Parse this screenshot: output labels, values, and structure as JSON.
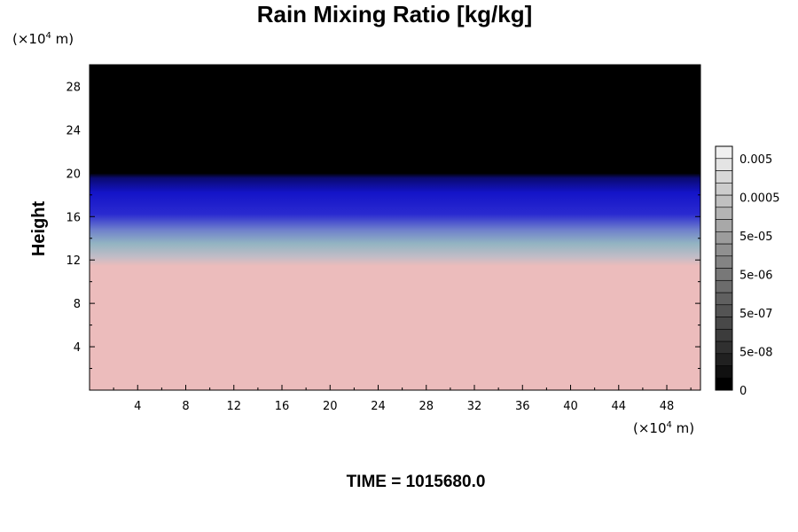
{
  "chart_data": {
    "type": "heatmap",
    "title": "Rain Mixing Ratio [kg/kg]",
    "ylabel": "Height",
    "xlabel": "",
    "x_unit": {
      "prefix": "(×10",
      "exponent": "4",
      "suffix": " m)"
    },
    "y_unit": {
      "prefix": "(×10",
      "exponent": "4",
      "suffix": " m)"
    },
    "xlim": [
      0,
      50.8
    ],
    "ylim": [
      0,
      30
    ],
    "x_ticks": [
      4,
      8,
      12,
      16,
      20,
      24,
      28,
      32,
      36,
      40,
      44,
      48
    ],
    "y_ticks": [
      4,
      8,
      12,
      16,
      20,
      24,
      28
    ],
    "time_label": "TIME = 1015680.0",
    "layers": [
      {
        "name": "below",
        "y_from": 0,
        "y_to": 11.5,
        "color": "#ecbcbc"
      },
      {
        "name": "mixed",
        "y_from": 11.5,
        "y_to": 15.0,
        "color": "#9ab8c0"
      },
      {
        "name": "blue",
        "y_from": 15.0,
        "y_to": 19.5,
        "color": "#1a1ad0"
      },
      {
        "name": "top",
        "y_from": 19.5,
        "y_to": 30,
        "color": "#000000"
      }
    ],
    "colorbar": {
      "tick_labels": [
        "0.005",
        "0.0005",
        "5e-05",
        "5e-06",
        "5e-07",
        "5e-08",
        "0"
      ],
      "colors": [
        "#000000",
        "#101010",
        "#202020",
        "#303030",
        "#3c3c3c",
        "#484848",
        "#545454",
        "#606060",
        "#6c6c6c",
        "#787878",
        "#848484",
        "#909090",
        "#9c9c9c",
        "#a8a8a8",
        "#b4b4b4",
        "#c0c0c0",
        "#cccccc",
        "#d8d8d8",
        "#e4e4e4",
        "#f0f0f0"
      ]
    }
  }
}
